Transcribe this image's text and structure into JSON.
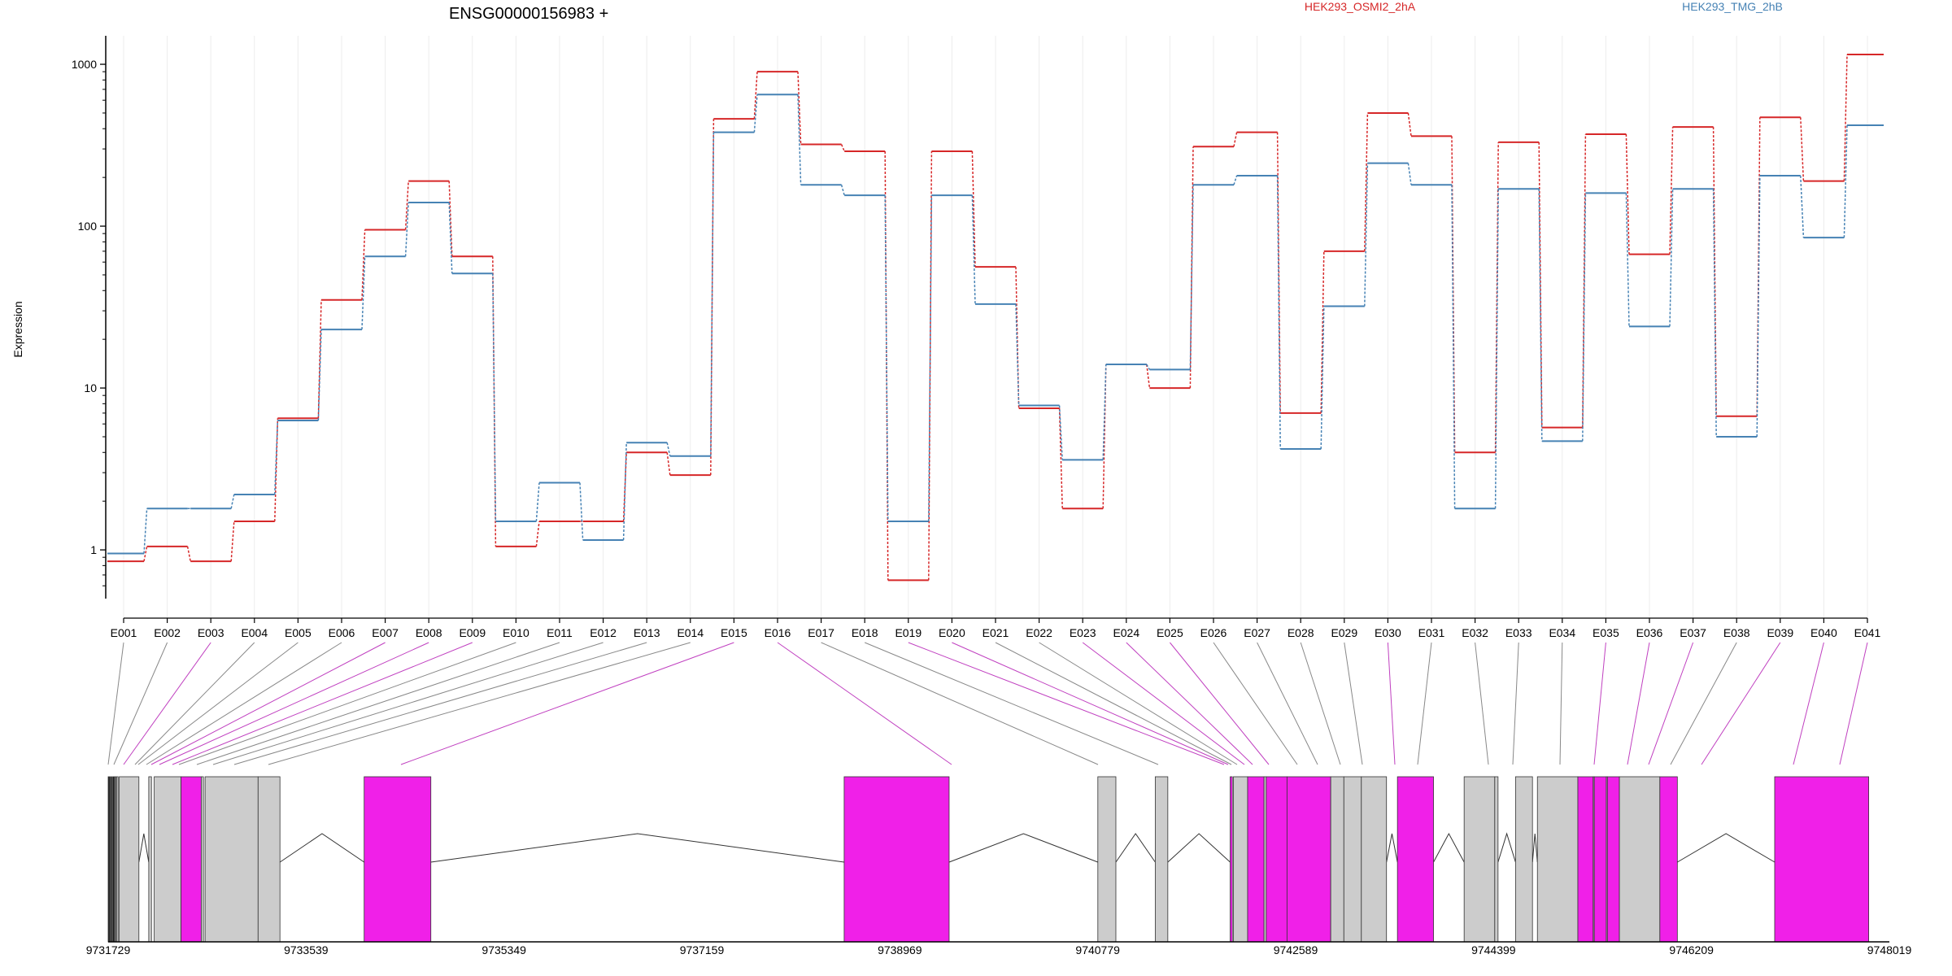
{
  "chart_data": {
    "type": "line",
    "title": "ENSG00000156983 +",
    "ylabel": "Expression",
    "yscale": "log",
    "ylim": [
      0.5,
      1500
    ],
    "yticks": [
      1,
      10,
      100,
      1000
    ],
    "ytick_labels": [
      "1",
      "10",
      "100",
      "1000"
    ],
    "categories": [
      "E001",
      "E002",
      "E003",
      "E004",
      "E005",
      "E006",
      "E007",
      "E008",
      "E009",
      "E010",
      "E011",
      "E012",
      "E013",
      "E014",
      "E015",
      "E016",
      "E017",
      "E018",
      "E019",
      "E020",
      "E021",
      "E022",
      "E023",
      "E024",
      "E025",
      "E026",
      "E027",
      "E028",
      "E029",
      "E030",
      "E031",
      "E032",
      "E033",
      "E034",
      "E035",
      "E036",
      "E037",
      "E038",
      "E039",
      "E040",
      "E041"
    ],
    "series": [
      {
        "name": "HEK293_OSMI2_2hA",
        "color": "#d62728",
        "dash": true,
        "values": [
          0.85,
          1.05,
          0.85,
          1.5,
          6.5,
          35,
          95,
          190,
          65,
          1.05,
          1.5,
          1.5,
          4.0,
          2.9,
          460,
          900,
          320,
          290,
          0.65,
          290,
          56,
          7.5,
          1.8,
          14,
          10,
          310,
          380,
          7,
          70,
          500,
          360,
          4.0,
          330,
          5.7,
          370,
          67,
          410,
          6.7,
          470,
          190,
          1150
        ]
      },
      {
        "name": "HEK293_TMG_2hB",
        "color": "#4682b4",
        "dash": true,
        "values": [
          0.95,
          1.8,
          1.8,
          2.2,
          6.3,
          23,
          65,
          140,
          51,
          1.5,
          2.6,
          1.15,
          4.6,
          3.8,
          380,
          650,
          180,
          155,
          1.5,
          155,
          33,
          7.8,
          3.6,
          14,
          13,
          180,
          205,
          4.2,
          32,
          245,
          180,
          1.8,
          170,
          4.7,
          160,
          24,
          170,
          5.0,
          205,
          85,
          420
        ]
      }
    ],
    "genomic_axis": {
      "tick_labels": [
        "9731729",
        "9733539",
        "9735349",
        "9737159",
        "9738969",
        "9740779",
        "9742589",
        "9744399",
        "9746209",
        "9748019"
      ]
    },
    "exons": [
      {
        "start": 9731729,
        "end": 9731745,
        "type": "dark"
      },
      {
        "start": 9731752,
        "end": 9731762,
        "type": "dark"
      },
      {
        "start": 9731770,
        "end": 9731785,
        "type": "dark"
      },
      {
        "start": 9731790,
        "end": 9731800,
        "type": "other"
      },
      {
        "start": 9731805,
        "end": 9731820,
        "type": "other"
      },
      {
        "start": 9731830,
        "end": 9732010,
        "type": "other"
      },
      {
        "start": 9732100,
        "end": 9732125,
        "type": "other"
      },
      {
        "start": 9732150,
        "end": 9732395,
        "type": "other"
      },
      {
        "start": 9732395,
        "end": 9732580,
        "type": "differential"
      },
      {
        "start": 9732580,
        "end": 9732600,
        "type": "other"
      },
      {
        "start": 9732615,
        "end": 9733100,
        "type": "other"
      },
      {
        "start": 9733100,
        "end": 9733300,
        "type": "other"
      },
      {
        "start": 9734070,
        "end": 9734680,
        "type": "differential"
      },
      {
        "start": 9738460,
        "end": 9739420,
        "type": "differential"
      },
      {
        "start": 9740780,
        "end": 9740945,
        "type": "other"
      },
      {
        "start": 9741305,
        "end": 9741420,
        "type": "other"
      },
      {
        "start": 9741990,
        "end": 9742010,
        "type": "differential"
      },
      {
        "start": 9742020,
        "end": 9742150,
        "type": "other"
      },
      {
        "start": 9742150,
        "end": 9742300,
        "type": "differential"
      },
      {
        "start": 9742300,
        "end": 9742320,
        "type": "other"
      },
      {
        "start": 9742320,
        "end": 9742510,
        "type": "differential"
      },
      {
        "start": 9742510,
        "end": 9742910,
        "type": "differential"
      },
      {
        "start": 9742910,
        "end": 9743030,
        "type": "other"
      },
      {
        "start": 9743030,
        "end": 9743190,
        "type": "other"
      },
      {
        "start": 9743190,
        "end": 9743420,
        "type": "other"
      },
      {
        "start": 9743520,
        "end": 9743850,
        "type": "differential"
      },
      {
        "start": 9744130,
        "end": 9744410,
        "type": "other"
      },
      {
        "start": 9744410,
        "end": 9744440,
        "type": "other"
      },
      {
        "start": 9744600,
        "end": 9744755,
        "type": "other"
      },
      {
        "start": 9744800,
        "end": 9745170,
        "type": "other"
      },
      {
        "start": 9745170,
        "end": 9745310,
        "type": "differential"
      },
      {
        "start": 9745310,
        "end": 9745320,
        "type": "other"
      },
      {
        "start": 9745320,
        "end": 9745430,
        "type": "differential"
      },
      {
        "start": 9745430,
        "end": 9745440,
        "type": "other"
      },
      {
        "start": 9745440,
        "end": 9745550,
        "type": "differential"
      },
      {
        "start": 9745550,
        "end": 9745920,
        "type": "other"
      },
      {
        "start": 9745920,
        "end": 9746080,
        "type": "differential"
      },
      {
        "start": 9746970,
        "end": 9747830,
        "type": "differential"
      }
    ],
    "connector_targets": [
      9731729,
      9731729,
      9731729,
      9731729,
      9731729,
      9731729,
      9731729,
      9731729,
      9731729,
      9731729,
      9731729,
      9731729,
      9731729,
      9731729,
      9731729,
      9731729,
      9731729,
      9731729,
      9731729,
      9731729,
      9731729,
      9731729,
      9731729,
      9731729,
      9731729,
      9731729,
      9731729,
      9731729,
      9731729,
      9731729,
      9731729,
      9731729,
      9731729,
      9731729,
      9731729,
      9731729,
      9731729,
      9731729,
      9731729,
      9731729,
      9731729
    ],
    "connector_colors": [
      "#888888",
      "#888888",
      "#c040c0",
      "#888888",
      "#888888",
      "#888888",
      "#c040c0",
      "#c040c0",
      "#c040c0",
      "#888888",
      "#888888",
      "#888888",
      "#888888",
      "#888888",
      "#c040c0",
      "#c040c0",
      "#888888",
      "#888888",
      "#c040c0",
      "#c040c0",
      "#888888",
      "#888888",
      "#c040c0",
      "#c040c0",
      "#c040c0",
      "#888888",
      "#888888",
      "#888888",
      "#888888",
      "#c040c0",
      "#888888",
      "#888888",
      "#888888",
      "#888888",
      "#c040c0",
      "#c040c0",
      "#c040c0",
      "#888888",
      "#c040c0",
      "#c040c0",
      "#c040c0"
    ],
    "exon_colors": {
      "differential": "#f020e8",
      "other": "#cccccc",
      "dark": "#222222"
    },
    "legend_placement": "top-right",
    "grid": "vertical"
  }
}
